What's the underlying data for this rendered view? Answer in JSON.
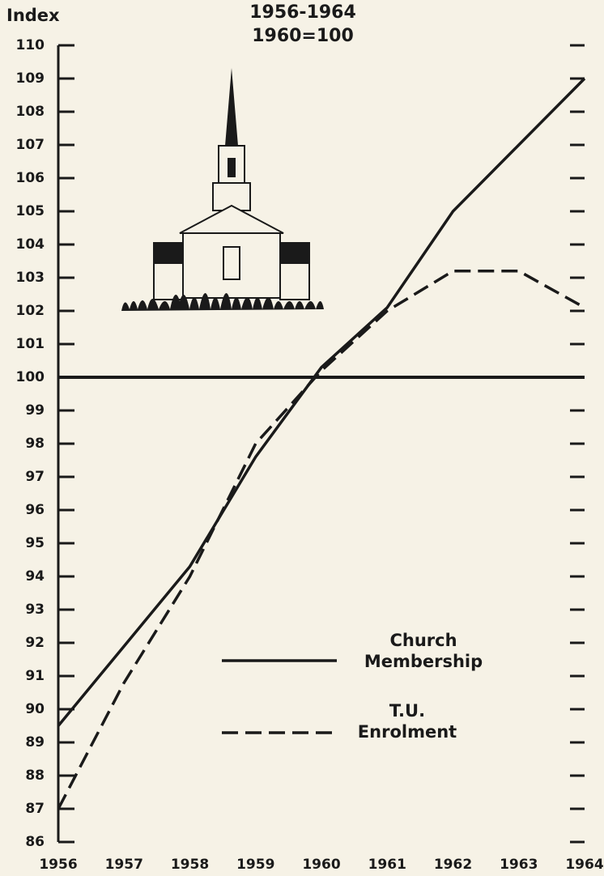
{
  "chart_data": {
    "type": "line",
    "title": "1956-1964",
    "subtitle": "1960=100",
    "y_label": "Index",
    "x": [
      1956,
      1957,
      1958,
      1959,
      1960,
      1961,
      1962,
      1963,
      1964
    ],
    "xlim": [
      1956,
      1964
    ],
    "xticks": [
      1956,
      1957,
      1958,
      1959,
      1960,
      1961,
      1962,
      1963,
      1964
    ],
    "ylim": [
      86,
      110
    ],
    "yticks": [
      86,
      87,
      88,
      89,
      90,
      91,
      92,
      93,
      94,
      95,
      96,
      97,
      98,
      99,
      100,
      101,
      102,
      103,
      104,
      105,
      106,
      107,
      108,
      109,
      110
    ],
    "reference_line": 100,
    "series": [
      {
        "name": "Church Membership",
        "color": "#1a1a1a",
        "dashed": false,
        "values": [
          89.5,
          91.9,
          94.3,
          97.6,
          100.3,
          102.1,
          105,
          107,
          109
        ]
      },
      {
        "name": "T.U. Enrolment",
        "color": "#1a1a1a",
        "dashed": true,
        "values": [
          87,
          90.8,
          94,
          98,
          100.2,
          102,
          103.2,
          103.2,
          102.1
        ]
      }
    ]
  }
}
